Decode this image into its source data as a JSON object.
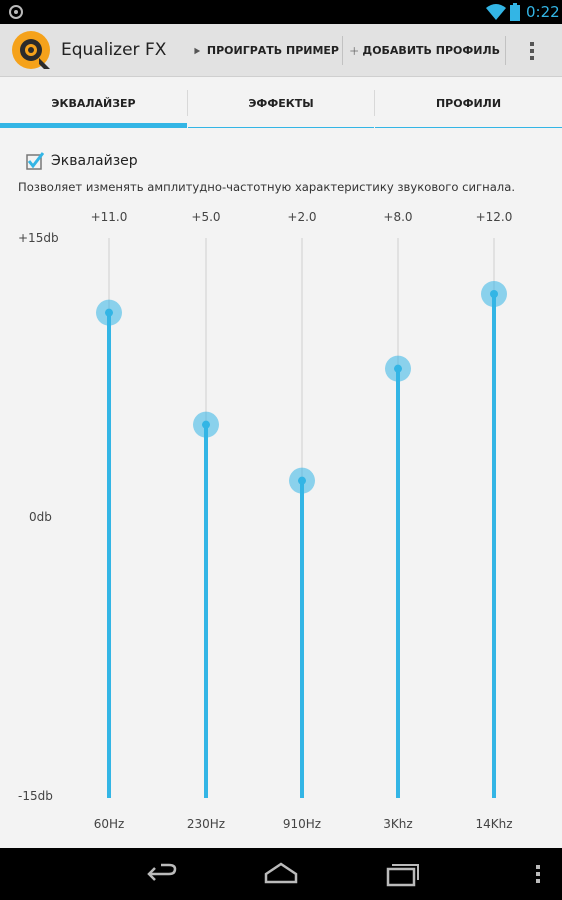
{
  "status_bar": {
    "time": "0:22",
    "accent": "#33b5e5"
  },
  "app": {
    "title": "Equalizer FX",
    "logo_icon": "equalizer-fx-logo",
    "actions": {
      "play_label": "ПРОИГРАТЬ ПРИМЕР",
      "play_icon": "play-icon",
      "add_label": "ДОБАВИТЬ ПРОФИЛЬ",
      "add_icon": "plus-icon",
      "menu_icon": "overflow-menu-icon"
    }
  },
  "tabs": [
    {
      "label": "ЭКВАЛАЙЗЕР",
      "active": true
    },
    {
      "label": "ЭФФЕКТЫ",
      "active": false
    },
    {
      "label": "ПРОФИЛИ",
      "active": false
    }
  ],
  "equalizer": {
    "enabled": true,
    "checkbox_label": "Эквалайзер",
    "description": "Позволяет изменять амплитудно-частотную характеристику звукового сигнала.",
    "scale": {
      "max_label": "+15db",
      "mid_label": "0db",
      "min_label": "-15db",
      "max": 15,
      "min": -15
    },
    "bands": [
      {
        "freq": "60Hz",
        "value_label": "+11.0",
        "value": 11.0
      },
      {
        "freq": "230Hz",
        "value_label": "+5.0",
        "value": 5.0
      },
      {
        "freq": "910Hz",
        "value_label": "+2.0",
        "value": 2.0
      },
      {
        "freq": "3Khz",
        "value_label": "+8.0",
        "value": 8.0
      },
      {
        "freq": "14Khz",
        "value_label": "+12.0",
        "value": 12.0
      }
    ],
    "accent_color": "#33b5e5"
  },
  "nav_bar": {
    "back_icon": "back-icon",
    "home_icon": "home-icon",
    "recents_icon": "recent-apps-icon",
    "menu_icon": "menu-icon"
  }
}
